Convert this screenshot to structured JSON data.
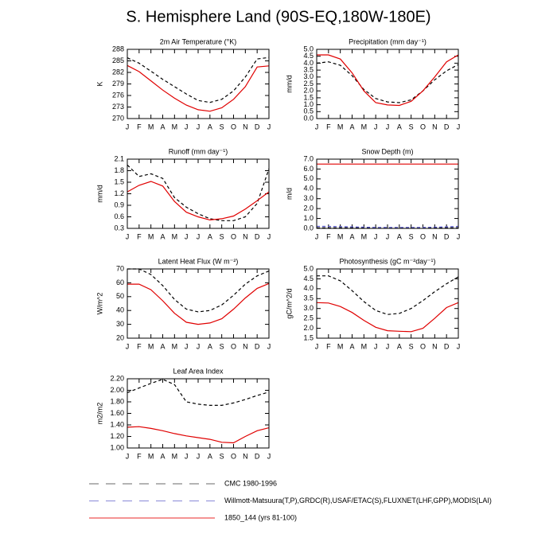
{
  "title": "S. Hemisphere Land (90S-EQ,180W-180E)",
  "chart_data": [
    {
      "type": "line",
      "title": "2m Air Temperature (°K)",
      "ylabel": "K",
      "categories": [
        "J",
        "F",
        "M",
        "A",
        "M",
        "J",
        "J",
        "A",
        "S",
        "O",
        "N",
        "D",
        "J"
      ],
      "ylim": [
        270,
        288
      ],
      "yticks": [
        270,
        273,
        276,
        279,
        282,
        285,
        288
      ],
      "series": [
        {
          "color": "#000000",
          "dashed": true,
          "values": [
            285.8,
            284.4,
            282.3,
            280.2,
            278.3,
            276.4,
            274.7,
            274.2,
            275.0,
            277.2,
            280.8,
            285.5,
            285.9
          ]
        },
        {
          "color": "#e00000",
          "dashed": false,
          "values": [
            283.8,
            282.2,
            279.8,
            277.4,
            275.3,
            273.5,
            272.3,
            271.9,
            272.8,
            275.0,
            278.3,
            283.4,
            283.7
          ]
        }
      ]
    },
    {
      "type": "line",
      "title": "Precipitation (mm day⁻¹)",
      "ylabel": "mm/d",
      "categories": [
        "J",
        "F",
        "M",
        "A",
        "M",
        "J",
        "J",
        "A",
        "S",
        "O",
        "N",
        "D",
        "J"
      ],
      "ylim": [
        0,
        5
      ],
      "yticks": [
        {
          "value": 0,
          "label": "0.0"
        },
        0.5,
        {
          "value": 1,
          "label": "1.0"
        },
        1.5,
        {
          "value": 2,
          "label": "2.0"
        },
        2.5,
        {
          "value": 3,
          "label": "3.0"
        },
        3.5,
        {
          "value": 4,
          "label": "4.0"
        },
        4.5,
        {
          "value": 5,
          "label": "5.0"
        }
      ],
      "series": [
        {
          "color": "#000000",
          "dashed": true,
          "values": [
            4.0,
            4.1,
            3.85,
            3.1,
            2.1,
            1.45,
            1.2,
            1.15,
            1.35,
            2.0,
            2.8,
            3.45,
            3.9
          ]
        },
        {
          "color": "#e00000",
          "dashed": false,
          "values": [
            4.6,
            4.6,
            4.3,
            3.3,
            2.0,
            1.15,
            0.98,
            0.95,
            1.25,
            2.0,
            3.0,
            4.1,
            4.6
          ]
        }
      ]
    },
    {
      "type": "line",
      "title": "Runoff (mm day⁻¹)",
      "ylabel": "mm/d",
      "categories": [
        "J",
        "F",
        "M",
        "A",
        "M",
        "J",
        "J",
        "A",
        "S",
        "O",
        "N",
        "D",
        "J"
      ],
      "ylim": [
        0.3,
        2.1
      ],
      "yticks": [
        0.3,
        0.6,
        0.9,
        1.2,
        1.5,
        1.8,
        2.1
      ],
      "series": [
        {
          "color": "#000000",
          "dashed": true,
          "values": [
            1.95,
            1.65,
            1.72,
            1.6,
            1.1,
            0.85,
            0.68,
            0.55,
            0.5,
            0.5,
            0.6,
            0.95,
            1.85
          ]
        },
        {
          "color": "#e00000",
          "dashed": false,
          "values": [
            1.25,
            1.42,
            1.52,
            1.4,
            1.0,
            0.72,
            0.6,
            0.52,
            0.55,
            0.62,
            0.8,
            1.02,
            1.25
          ]
        }
      ]
    },
    {
      "type": "line",
      "title": "Snow Depth (m)",
      "ylabel": "m/d",
      "categories": [
        "J",
        "F",
        "M",
        "A",
        "M",
        "J",
        "J",
        "A",
        "S",
        "O",
        "N",
        "D",
        "J"
      ],
      "ylim": [
        0,
        7
      ],
      "yticks": [
        {
          "value": 0,
          "label": "0.0"
        },
        {
          "value": 1,
          "label": "1.0"
        },
        {
          "value": 2,
          "label": "2.0"
        },
        {
          "value": 3,
          "label": "3.0"
        },
        {
          "value": 4,
          "label": "4.0"
        },
        {
          "value": 5,
          "label": "5.0"
        },
        {
          "value": 6,
          "label": "6.0"
        },
        {
          "value": 7,
          "label": "7.0"
        }
      ],
      "series": [
        {
          "color": "#000000",
          "dashed": true,
          "values": [
            0.05,
            0.05,
            0.05,
            0.05,
            0.05,
            0.05,
            0.05,
            0.05,
            0.05,
            0.05,
            0.05,
            0.05,
            0.05
          ]
        },
        {
          "color": "#5555cc",
          "dashed": true,
          "values": [
            0.2,
            0.2,
            0.18,
            0.15,
            0.12,
            0.1,
            0.1,
            0.1,
            0.1,
            0.1,
            0.12,
            0.15,
            0.2
          ]
        },
        {
          "color": "#e00000",
          "dashed": false,
          "values": [
            6.5,
            6.5,
            6.5,
            6.5,
            6.5,
            6.5,
            6.5,
            6.5,
            6.5,
            6.5,
            6.5,
            6.5,
            6.5
          ]
        }
      ]
    },
    {
      "type": "line",
      "title": "Latent Heat Flux (W m⁻²)",
      "ylabel": "W/m^2",
      "categories": [
        "J",
        "F",
        "M",
        "A",
        "M",
        "J",
        "J",
        "A",
        "S",
        "O",
        "N",
        "D",
        "J"
      ],
      "ylim": [
        20,
        70
      ],
      "yticks": [
        20,
        30,
        40,
        50,
        60,
        70
      ],
      "series": [
        {
          "color": "#000000",
          "dashed": true,
          "values": [
            70,
            70,
            66,
            58,
            48,
            41,
            39,
            40,
            44,
            51,
            59,
            65,
            68.5
          ]
        },
        {
          "color": "#e00000",
          "dashed": false,
          "values": [
            59,
            59,
            55,
            47,
            38,
            31.5,
            30,
            31,
            34,
            41,
            49,
            56,
            59.5
          ]
        }
      ]
    },
    {
      "type": "line",
      "title": "Photosynthesis (gC m⁻²day⁻¹)",
      "ylabel": "gC/m^2/d",
      "categories": [
        "J",
        "F",
        "M",
        "A",
        "M",
        "J",
        "J",
        "A",
        "S",
        "O",
        "N",
        "D",
        "J"
      ],
      "ylim": [
        1.5,
        5
      ],
      "yticks": [
        1.5,
        {
          "value": 2,
          "label": "2.0"
        },
        2.5,
        {
          "value": 3,
          "label": "3.0"
        },
        3.5,
        {
          "value": 4,
          "label": "4.0"
        },
        4.5,
        {
          "value": 5,
          "label": "5.0"
        }
      ],
      "series": [
        {
          "color": "#000000",
          "dashed": true,
          "values": [
            4.65,
            4.65,
            4.4,
            3.9,
            3.35,
            2.9,
            2.7,
            2.75,
            3.0,
            3.4,
            3.85,
            4.25,
            4.6
          ]
        },
        {
          "color": "#e00000",
          "dashed": false,
          "values": [
            3.3,
            3.28,
            3.1,
            2.8,
            2.4,
            2.05,
            1.88,
            1.85,
            1.83,
            2.0,
            2.5,
            3.05,
            3.3
          ]
        }
      ]
    },
    {
      "type": "line",
      "title": "Leaf Area Index",
      "ylabel": "m2/m2",
      "categories": [
        "J",
        "F",
        "M",
        "A",
        "M",
        "J",
        "J",
        "A",
        "S",
        "O",
        "N",
        "D",
        "J"
      ],
      "ylim": [
        1,
        2.2
      ],
      "yticks": [
        {
          "value": 1,
          "label": "1.00"
        },
        {
          "value": 1.2,
          "label": "1.20"
        },
        {
          "value": 1.4,
          "label": "1.40"
        },
        {
          "value": 1.6,
          "label": "1.60"
        },
        {
          "value": 1.8,
          "label": "1.80"
        },
        {
          "value": 2,
          "label": "2.00"
        },
        {
          "value": 2.2,
          "label": "2.20"
        }
      ],
      "series": [
        {
          "color": "#000000",
          "dashed": true,
          "values": [
            1.96,
            2.04,
            2.12,
            2.19,
            2.1,
            1.8,
            1.76,
            1.74,
            1.74,
            1.78,
            1.84,
            1.91,
            1.97
          ]
        },
        {
          "color": "#e00000",
          "dashed": false,
          "values": [
            1.36,
            1.37,
            1.34,
            1.3,
            1.25,
            1.21,
            1.18,
            1.15,
            1.1,
            1.09,
            1.2,
            1.3,
            1.35
          ]
        }
      ]
    }
  ],
  "legend": [
    {
      "label": "CMC 1980-1996",
      "color": "#888888"
    },
    {
      "label": "Willmott-Matsuura(T,P),GRDC(R),USAF/ETAC(S),FLUXNET(LHF,GPP),MODIS(LAI)",
      "color": "#9999dd"
    },
    {
      "label": "1850_144 (yrs 81-100)",
      "color": "#ee5555"
    }
  ]
}
